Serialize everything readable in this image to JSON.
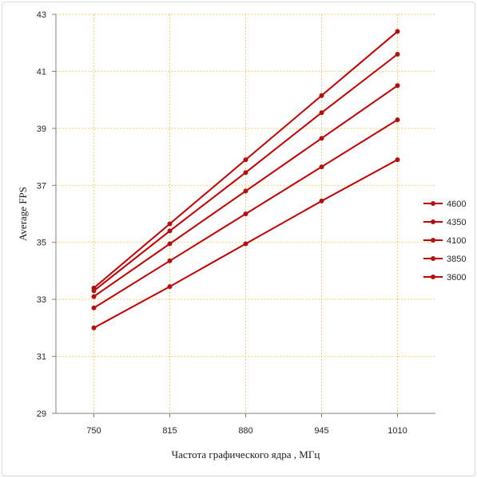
{
  "chart_data": {
    "type": "line",
    "title": "",
    "xlabel": "Частота графического ядра , МГц",
    "ylabel": "Average FPS",
    "categories": [
      "750",
      "815",
      "880",
      "945",
      "1010"
    ],
    "ylim": [
      29,
      43
    ],
    "yticks": [
      29,
      31,
      33,
      35,
      37,
      39,
      41,
      43
    ],
    "grid": true,
    "legend_position": "right",
    "series": [
      {
        "name": "4600",
        "values": [
          33.4,
          35.65,
          37.9,
          40.15,
          42.4
        ]
      },
      {
        "name": "4350",
        "values": [
          33.3,
          35.4,
          37.45,
          39.55,
          41.6
        ]
      },
      {
        "name": "4100",
        "values": [
          33.1,
          34.95,
          36.8,
          38.65,
          40.5
        ]
      },
      {
        "name": "3850",
        "values": [
          32.7,
          34.35,
          36.0,
          37.65,
          39.3
        ]
      },
      {
        "name": "3600",
        "values": [
          32.0,
          33.45,
          34.95,
          36.45,
          37.9
        ]
      }
    ],
    "colors": {
      "series_line": "#c00000",
      "marker": "#b01010",
      "grid": "#f0d060",
      "axis": "#808080"
    }
  }
}
